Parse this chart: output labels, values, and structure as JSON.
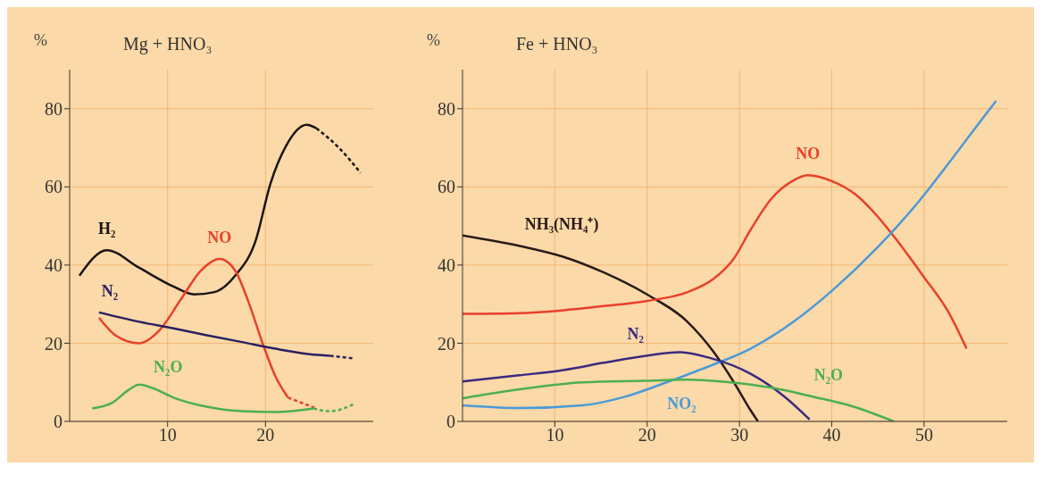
{
  "chart_data": [
    {
      "type": "line",
      "title": "Mg + HNO₃",
      "ylabel": "%",
      "xlim": [
        0,
        31
      ],
      "xticks": [
        10,
        20
      ],
      "ylim": [
        0,
        90
      ],
      "yticks": [
        0,
        20,
        40,
        60,
        80
      ],
      "grid": true,
      "marker": "none",
      "series": [
        {
          "name": "H₂",
          "color": "#1a1414",
          "line_style": "solid",
          "x": [
            1.0,
            3.8,
            7.1,
            10.6,
            12.7,
            14.8,
            16.9,
            19.0,
            20.5,
            22.1,
            24.2,
            25.2
          ],
          "values": [
            37.3,
            43.8,
            39.3,
            34.5,
            32.5,
            33.1,
            37.3,
            46.3,
            60.8,
            70.5,
            75.9,
            75
          ]
        },
        {
          "color": "#1a1414",
          "line_style": "dashed",
          "x": [
            25.2,
            27.5,
            29.7
          ],
          "values": [
            75,
            70,
            63.6
          ]
        },
        {
          "name": "NO",
          "color": "#e8402a",
          "line_style": "solid",
          "x": [
            3.0,
            4.7,
            7.1,
            9.2,
            11.3,
            13.4,
            15.3,
            16.9,
            18.3,
            19.7,
            21.0,
            22.3
          ],
          "values": [
            26.5,
            22,
            20,
            23.4,
            31,
            38.6,
            41.6,
            38.6,
            30.3,
            20,
            11.6,
            6.1
          ]
        },
        {
          "color": "#e8402a",
          "line_style": "dashed",
          "x": [
            22.3,
            25.0
          ],
          "values": [
            6.1,
            3.5
          ]
        },
        {
          "name": "N₂",
          "color": "#2a2060",
          "line_style": "solid",
          "x": [
            3.0,
            7.1,
            10.6,
            14.1,
            17.6,
            21.0,
            24.5,
            26.6
          ],
          "values": [
            27.9,
            25.5,
            23.8,
            22,
            20.3,
            18.6,
            17.2,
            16.8
          ]
        },
        {
          "color": "#2a2060",
          "line_style": "dashed",
          "x": [
            26.6,
            29.0
          ],
          "values": [
            16.8,
            16.1
          ]
        },
        {
          "name": "N₂O",
          "color": "#4caf50",
          "line_style": "solid",
          "x": [
            2.3,
            4.3,
            6.1,
            7.1,
            8.5,
            10.6,
            14.1,
            17.6,
            21.0,
            24.9
          ],
          "values": [
            3.3,
            4.7,
            8.2,
            9.4,
            8.5,
            6.1,
            3.7,
            2.6,
            2.4,
            3.3
          ]
        },
        {
          "color": "#4caf50",
          "line_style": "dashed",
          "x": [
            24.9,
            26.6,
            29.0
          ],
          "values": [
            3.3,
            2.6,
            4.4
          ]
        }
      ]
    },
    {
      "type": "line",
      "title": "Fe + HNO₃",
      "ylabel": "%",
      "xlim": [
        0,
        59
      ],
      "xticks": [
        10,
        20,
        30,
        40,
        50
      ],
      "ylim": [
        0,
        90
      ],
      "yticks": [
        0,
        20,
        40,
        60,
        80
      ],
      "grid": true,
      "marker": "none",
      "series": [
        {
          "name": "NH₃(NH₄⁺)",
          "color": "#2a1a1a",
          "line_style": "solid",
          "x": [
            0,
            6.2,
            10.8,
            15.3,
            19.9,
            24.4,
            27.1,
            29.4,
            31,
            32
          ],
          "values": [
            47.6,
            44.9,
            42.2,
            38.1,
            32.6,
            25.4,
            18.1,
            10,
            3.6,
            0
          ]
        },
        {
          "name": "NO",
          "color": "#e8402a",
          "line_style": "solid",
          "x": [
            0,
            6.2,
            10.8,
            15.3,
            19.9,
            24.4,
            27.1,
            29.4,
            31.2,
            33.5,
            35.8,
            37.4,
            39.9,
            42.6,
            44.9,
            47.1,
            49.9,
            52.6,
            54.6
          ],
          "values": [
            27.5,
            27.7,
            28.4,
            29.5,
            30.8,
            33.1,
            36.3,
            41.7,
            49,
            57.1,
            61.6,
            63,
            61.6,
            58,
            52.6,
            46.2,
            37.2,
            28.1,
            18.6
          ]
        },
        {
          "name": "NO₂",
          "color": "#4a9ad8",
          "line_style": "solid",
          "x": [
            0,
            6.2,
            13,
            17.6,
            22.1,
            26.7,
            31.2,
            35.8,
            40.3,
            44.9,
            49.4,
            53,
            56.2,
            57.8
          ],
          "values": [
            4.1,
            3.4,
            4.1,
            6.3,
            10,
            14.1,
            18.6,
            25.4,
            34,
            44.4,
            56.2,
            67.1,
            77.1,
            82
          ]
        },
        {
          "name": "N₂",
          "color": "#3a2a80",
          "line_style": "solid",
          "x": [
            0,
            6.2,
            10.8,
            15.3,
            19.9,
            23.5,
            26.7,
            31.2,
            34.9,
            37.6
          ],
          "values": [
            10.2,
            11.8,
            13.1,
            15,
            16.8,
            17.7,
            16.3,
            12.2,
            6.3,
            0.5
          ]
        },
        {
          "name": "N₂O",
          "color": "#4caf50",
          "line_style": "solid",
          "x": [
            0,
            6.2,
            13,
            19.9,
            24.4,
            29,
            33.5,
            38,
            42.6,
            46.7
          ],
          "values": [
            5.9,
            8.2,
            10,
            10.4,
            10.7,
            10,
            8.6,
            6.3,
            3.6,
            0
          ]
        }
      ]
    }
  ]
}
